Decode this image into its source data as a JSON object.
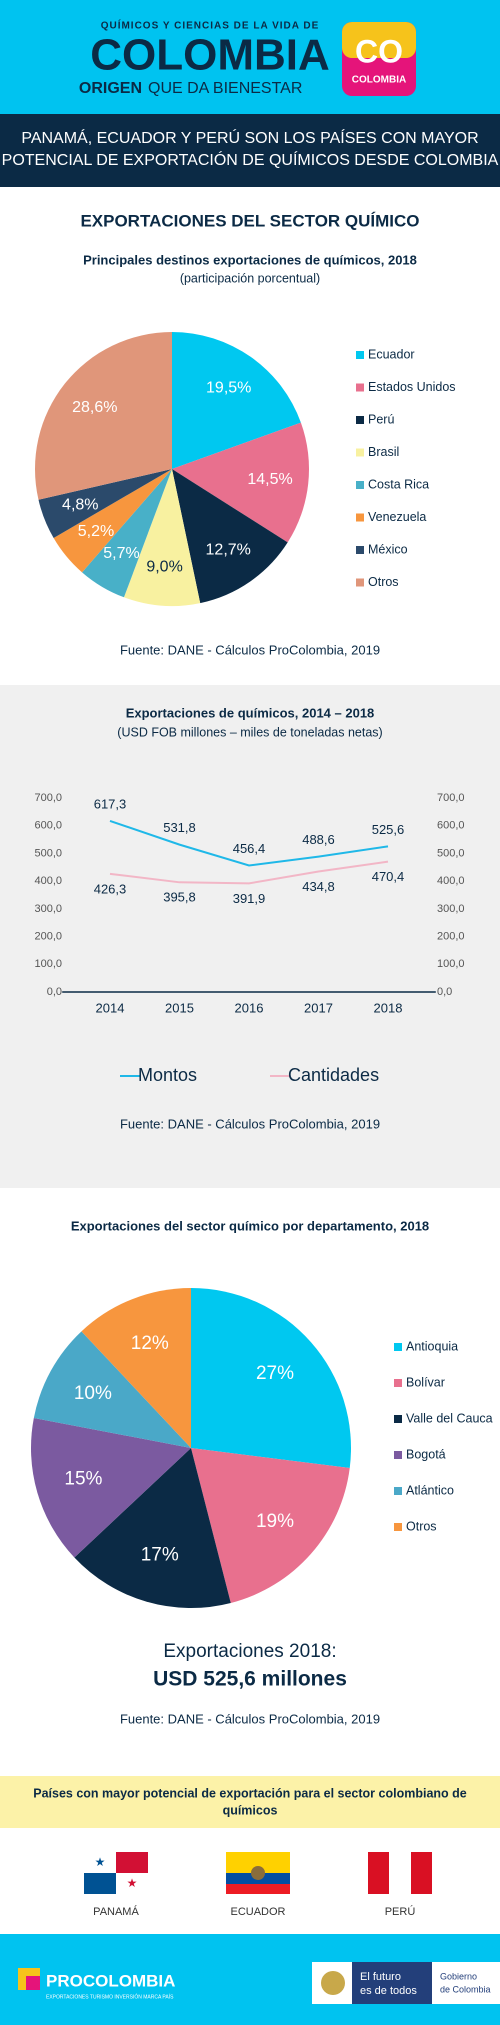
{
  "header": {
    "tagline": "QUÍMICOS Y CIENCIAS DE LA VIDA DE",
    "brand": "COLOMBIA",
    "origin": "ORIGEN",
    "slogan": "QUE DA BIENESTAR",
    "badge": "CO",
    "badge_sub": "COLOMBIA"
  },
  "banner": {
    "line1": "PANAMÁ, ECUADOR Y PERÚ SON LOS PAÍSES CON MAYOR",
    "line2": "POTENCIAL DE EXPORTACIÓN DE QUÍMICOS DESDE COLOMBIA"
  },
  "section_title": "EXPORTACIONES DEL SECTOR QUÍMICO",
  "chart_data": [
    {
      "type": "pie",
      "title": "Principales destinos exportaciones de químicos, 2018",
      "subtitle": "(participación porcentual)",
      "categories": [
        "Ecuador",
        "Estados Unidos",
        "Perú",
        "Brasil",
        "Costa Rica",
        "Venezuela",
        "México",
        "Otros"
      ],
      "values": [
        19.5,
        14.5,
        12.7,
        9.0,
        5.7,
        5.2,
        4.8,
        28.6
      ],
      "value_labels": [
        "19,5%",
        "14,5%",
        "12,7%",
        "9,0%",
        "5,7%",
        "5,2%",
        "4,8%",
        "28,6%"
      ],
      "colors": [
        "#00c8f0",
        "#e8708e",
        "#0b2a45",
        "#f8f1a0",
        "#48b0c8",
        "#f7963e",
        "#2b4a6b",
        "#e0967a"
      ],
      "label_colors": [
        "#ffffff",
        "#ffffff",
        "#ffffff",
        "#0b2a45",
        "#ffffff",
        "#ffffff",
        "#ffffff",
        "#ffffff"
      ],
      "source": "Fuente: DANE - Cálculos ProColombia, 2019"
    },
    {
      "type": "line",
      "title": "Exportaciones de químicos, 2014 – 2018",
      "subtitle": "(USD FOB millones – miles de toneladas netas)",
      "x": [
        2014,
        2015,
        2016,
        2017,
        2018
      ],
      "series": [
        {
          "name": "Montos",
          "color": "#1fb8e8",
          "values": [
            617.3,
            531.8,
            456.4,
            488.6,
            525.6
          ],
          "value_labels": [
            "617,3",
            "531,8",
            "456,4",
            "488,6",
            "525,6"
          ]
        },
        {
          "name": "Cantidades",
          "color": "#f2b6c6",
          "values": [
            426.3,
            395.8,
            391.9,
            434.8,
            470.4
          ],
          "value_labels": [
            "426,3",
            "395,8",
            "391,9",
            "434,8",
            "470,4"
          ],
          "axis": "y2"
        }
      ],
      "xlim": [
        2013.6,
        2018.4
      ],
      "ylim": [
        0,
        700
      ],
      "yticks": [
        {
          "value": 0,
          "label": "0,0"
        },
        {
          "value": 100,
          "label": "100,0"
        },
        {
          "value": 200,
          "label": "200,0"
        },
        {
          "value": 300,
          "label": "300,0"
        },
        {
          "value": 400,
          "label": "400,0"
        },
        {
          "value": 500,
          "label": "500,0"
        },
        {
          "value": 600,
          "label": "600,0"
        },
        {
          "value": 700,
          "label": "700,0"
        }
      ],
      "y2lim": [
        0,
        700
      ],
      "y2ticks": [
        {
          "value": 0,
          "label": "0,0"
        },
        {
          "value": 100,
          "label": "100,0"
        },
        {
          "value": 200,
          "label": "200,0"
        },
        {
          "value": 300,
          "label": "300,0"
        },
        {
          "value": 400,
          "label": "400,0"
        },
        {
          "value": 500,
          "label": "500,0"
        },
        {
          "value": 600,
          "label": "600,0"
        },
        {
          "value": 700,
          "label": "700,0"
        }
      ],
      "source": "Fuente: DANE - Cálculos ProColombia, 2019"
    },
    {
      "type": "pie",
      "title": "Exportaciones del sector químico por departamento, 2018",
      "categories": [
        "Antioquia",
        "Bolívar",
        "Valle del Cauca",
        "Bogotá",
        "Atlántico",
        "Otros"
      ],
      "values": [
        27,
        19,
        17,
        15,
        10,
        12
      ],
      "value_labels": [
        "27%",
        "19%",
        "17%",
        "15%",
        "10%",
        "12%"
      ],
      "colors": [
        "#00c8f0",
        "#e8708e",
        "#0b2a45",
        "#7b5aa0",
        "#4aa8c8",
        "#f7963e"
      ],
      "label_colors": [
        "#ffffff",
        "#ffffff",
        "#ffffff",
        "#ffffff",
        "#ffffff",
        "#ffffff"
      ],
      "source": "Fuente: DANE - Cálculos ProColombia, 2019"
    }
  ],
  "summary": {
    "label": "Exportaciones 2018:",
    "total": "USD 525,6 millones"
  },
  "potential": {
    "line1": "Países con mayor potencial de exportación para el sector colombiano de",
    "line2": "químicos",
    "countries": [
      "PANAMÁ",
      "ECUADOR",
      "PERÚ"
    ]
  },
  "footer": {
    "brand": "PROCOLOMBIA",
    "brand_sub": "EXPORTACIONES TURISMO INVERSIÓN MARCA PAÍS",
    "motto1": "El futuro",
    "motto2": "es de todos",
    "gov1": "Gobierno",
    "gov2": "de Colombia"
  }
}
